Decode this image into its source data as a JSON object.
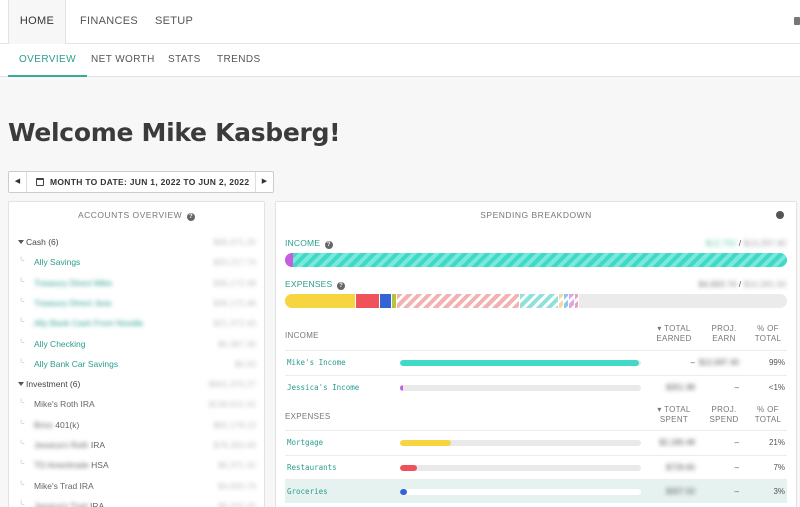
{
  "topnav": {
    "tabs": [
      {
        "label": "HOME"
      },
      {
        "label": "FINANCES"
      },
      {
        "label": "SETUP"
      }
    ]
  },
  "subnav": {
    "tabs": [
      {
        "label": "OVERVIEW"
      },
      {
        "label": "NET WORTH"
      },
      {
        "label": "STATS"
      },
      {
        "label": "TRENDS"
      }
    ]
  },
  "welcome": "Welcome Mike Kasberg!",
  "date_range": {
    "label": "MONTH TO DATE: JUN 1, 2022 TO JUN 2, 2022",
    "prev": "◀",
    "next": "▶"
  },
  "accounts": {
    "title": "ACCOUNTS OVERVIEW",
    "rows": [
      {
        "name": "Cash (6)",
        "amount": "$66,371.25"
      },
      {
        "name": "Ally Savings",
        "amount": "$33,217.74"
      },
      {
        "name": "Treasury Direct Mike",
        "amount": "$36,172.48"
      },
      {
        "name": "Treasury Direct Jess",
        "amount": "$36,172.48"
      },
      {
        "name": "Ally Bank Cash From Noodle",
        "amount": "$21,372.40"
      },
      {
        "name": "Ally Checking",
        "amount": "$5,367.30"
      },
      {
        "name": "Ally Bank Car Savings",
        "amount": "$0.00"
      },
      {
        "name": "Investment (6)",
        "amount": "$601,370.27"
      },
      {
        "name": "Mike's Roth IRA",
        "amount": "$136,621.42"
      },
      {
        "name": "Brixx 401(k)",
        "amount": "$65,178.13"
      },
      {
        "name": "Jessica's Roth IRA",
        "amount": "$78,350.40"
      },
      {
        "name": "TD Ameritrade HSA",
        "amount": "$6,371.42"
      },
      {
        "name": "Mike's Trad IRA",
        "amount": "$4,920.74"
      },
      {
        "name": "Jessica's Trad IRA",
        "amount": "$6,202.20"
      }
    ]
  },
  "spending": {
    "title": "SPENDING BREAKDOWN",
    "income_label": "INCOME",
    "income_value": "$12,752",
    "income_total": "$13,297.40",
    "expenses_label": "EXPENSES",
    "expenses_value": "$4,693.74",
    "expenses_total": "$10,281.50",
    "expense_segments": [
      {
        "color": "#f7d540",
        "pct": 14.2,
        "striped": false
      },
      {
        "color": "#f0525c",
        "pct": 4.8,
        "striped": false
      },
      {
        "color": "#3264d6",
        "pct": 2.4,
        "striped": false
      },
      {
        "color": "#b8c23b",
        "pct": 0.9,
        "striped": false
      },
      {
        "color": "#f2b2b2",
        "pct": 24.5,
        "striped": true
      },
      {
        "color": "#8fe1da",
        "pct": 7.8,
        "striped": true
      },
      {
        "color": "#f5d9a0",
        "pct": 0.9,
        "striped": true
      },
      {
        "color": "#86c8ef",
        "pct": 1.1,
        "striped": true
      },
      {
        "color": "#d9a6e8",
        "pct": 1.1,
        "striped": true
      },
      {
        "color": "#e8a2c0",
        "pct": 0.8,
        "striped": true
      }
    ],
    "income_table": {
      "heading": "INCOME",
      "col1": "▾ TOTAL EARNED",
      "col2": "PROJ. EARN",
      "col3": "% OF TOTAL",
      "rows": [
        {
          "name": "Mike's Income",
          "total": "–",
          "proj": "$12,697.40",
          "pct": "99%",
          "share": 0.99,
          "color": "#40d9c6"
        },
        {
          "name": "Jessica's Income",
          "total": "$351.98",
          "proj": "–",
          "pct": "<1%",
          "share": 0.01,
          "color": "#c75ee0"
        }
      ]
    },
    "expense_table": {
      "heading": "EXPENSES",
      "col1": "▾ TOTAL SPENT",
      "col2": "PROJ. SPEND",
      "col3": "% OF TOTAL",
      "rows": [
        {
          "name": "Mortgage",
          "total": "$2,180.48",
          "proj": "–",
          "pct": "21%",
          "share": 0.21,
          "color": "#f7d540"
        },
        {
          "name": "Restaurants",
          "total": "$729.60",
          "proj": "–",
          "pct": "7%",
          "share": 0.07,
          "color": "#f0525c"
        },
        {
          "name": "Groceries",
          "total": "$307.50",
          "proj": "–",
          "pct": "3%",
          "share": 0.03,
          "color": "#3264d6"
        }
      ]
    }
  },
  "colors": {
    "accent": "#2a9d8f",
    "income_bar": "#40d9c6"
  }
}
